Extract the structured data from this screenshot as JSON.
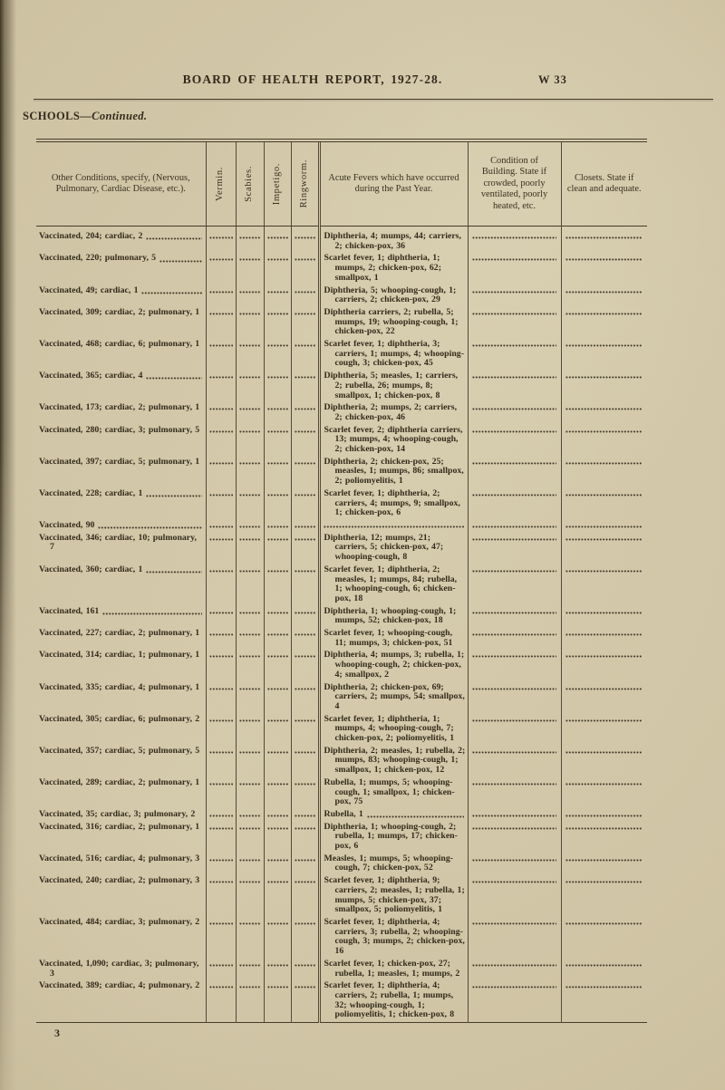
{
  "page_header": {
    "title": "BOARD OF HEALTH REPORT, 1927-28.",
    "page_label": "W 33"
  },
  "section": {
    "title_main": "SCHOOLS",
    "title_continued": "—Continued."
  },
  "table": {
    "headers": {
      "conditions": "Other Conditions, specify, (Nervous, Pulmonary, Cardiac Disease, etc.).",
      "vermin": "Vermin.",
      "scabies": "Scabies.",
      "impetigo": "Impetigo.",
      "ringworm": "Ringworm.",
      "fevers": "Acute Fevers which have occurred during the Past Year.",
      "building": "Condition of Building. State if crowded, poorly ventilated, poorly heated, etc.",
      "closets": "Closets. State if clean and adequate."
    },
    "rows": [
      {
        "conditions": "Vaccinated, 204; cardiac, 2",
        "conditions_leader": true,
        "fevers": "Diphtheria, 4; mumps, 44; carriers, 2; chicken-pox, 36"
      },
      {
        "conditions": "Vaccinated, 220; pulmonary, 5",
        "conditions_leader": true,
        "fevers": "Scarlet fever, 1; diphtheria, 1; mumps, 2; chicken-pox, 62; smallpox, 1"
      },
      {
        "conditions": "Vaccinated, 49; cardiac, 1",
        "conditions_leader": true,
        "fevers": "Diphtheria, 5; whooping-cough, 1; carriers, 2; chicken-pox, 29"
      },
      {
        "conditions": "Vaccinated, 309; cardiac, 2; pulmonary, 1",
        "conditions_leader": false,
        "fevers": "Diphtheria carriers, 2; rubella, 5; mumps, 19; whooping-cough, 1; chicken-pox, 22"
      },
      {
        "conditions": "Vaccinated, 468; cardiac, 6; pulmonary, 1",
        "conditions_leader": false,
        "fevers": "Scarlet fever, 1; diphtheria, 3; carriers, 1; mumps, 4; whooping-cough, 3; chicken-pox, 45"
      },
      {
        "conditions": "Vaccinated, 365; cardiac, 4",
        "conditions_leader": true,
        "fevers": "Diphtheria, 5; measles, 1; carriers, 2; rubella, 26; mumps, 8; smallpox, 1; chicken-pox, 8"
      },
      {
        "conditions": "Vaccinated, 173; cardiac, 2; pulmonary, 1",
        "conditions_leader": false,
        "fevers": "Diphtheria, 2; mumps, 2; carriers, 2; chicken-pox, 46"
      },
      {
        "conditions": "Vaccinated, 280; cardiac, 3; pulmonary, 5",
        "conditions_leader": false,
        "fevers": "Scarlet fever, 2; diphtheria carriers, 13; mumps, 4; whooping-cough, 2; chicken-pox, 14"
      },
      {
        "conditions": "Vaccinated, 397; cardiac, 5; pulmonary, 1",
        "conditions_leader": false,
        "fevers": "Diphtheria, 2; chicken-pox, 25; measles, 1; mumps, 86; smallpox, 2; poliomyelitis, 1"
      },
      {
        "conditions": "Vaccinated, 228; cardiac, 1",
        "conditions_leader": true,
        "fevers": "Scarlet fever, 1; diphtheria, 2; carriers, 4; mumps, 9; smallpox, 1; chicken-pox, 6"
      },
      {
        "conditions": "Vaccinated, 90",
        "conditions_leader": true,
        "fevers": ""
      },
      {
        "conditions": "Vaccinated, 346; cardiac, 10; pulmonary, 7",
        "conditions_leader": false,
        "fevers": "Diphtheria, 12; mumps, 21; carriers, 5; chicken-pox, 47; whooping-cough, 8"
      },
      {
        "conditions": "Vaccinated, 360; cardiac, 1",
        "conditions_leader": true,
        "fevers": "Scarlet fever, 1; diphtheria, 2; measles, 1; mumps, 84; rubella, 1; whooping-cough, 6; chicken-pox, 18"
      },
      {
        "conditions": "Vaccinated, 161",
        "conditions_leader": true,
        "fevers": "Diphtheria, 1; whooping-cough, 1; mumps, 52; chicken-pox, 18"
      },
      {
        "conditions": "Vaccinated, 227; cardiac, 2; pulmonary, 1",
        "conditions_leader": false,
        "fevers": "Scarlet fever, 1; whooping-cough, 11; mumps, 3; chicken-pox, 51"
      },
      {
        "conditions": "Vaccinated, 314; cardiac, 1; pulmonary, 1",
        "conditions_leader": false,
        "fevers": "Diphtheria, 4; mumps, 3; rubella, 1; whooping-cough, 2; chicken-pox, 4; smallpox, 2"
      },
      {
        "conditions": "Vaccinated, 335; cardiac, 4; pulmonary, 1",
        "conditions_leader": false,
        "fevers": "Diphtheria, 2; chicken-pox, 69; carriers, 2; mumps, 54; smallpox, 4"
      },
      {
        "conditions": "Vaccinated, 305; cardiac, 6; pulmonary, 2",
        "conditions_leader": false,
        "fevers": "Scarlet fever, 1; diphtheria, 1; mumps, 4; whooping-cough, 7; chicken-pox, 2; poliomyelitis, 1"
      },
      {
        "conditions": "Vaccinated, 357; cardiac, 5; pulmonary, 5",
        "conditions_leader": false,
        "fevers": "Diphtheria, 2; measles, 1; rubella, 2; mumps, 83; whooping-cough, 1; smallpox, 1; chicken-pox, 12"
      },
      {
        "conditions": "Vaccinated, 289; cardiac, 2; pulmonary, 1",
        "conditions_leader": false,
        "fevers": "Rubella, 1; mumps, 5; whooping-cough, 1; smallpox, 1; chicken-pox, 75"
      },
      {
        "conditions": "Vaccinated, 35; cardiac, 3; pulmonary, 2",
        "conditions_leader": false,
        "fevers": "Rubella, 1",
        "fevers_leader": true
      },
      {
        "conditions": "Vaccinated, 316; cardiac, 2; pulmonary, 1",
        "conditions_leader": false,
        "fevers": "Diphtheria, 1; whooping-cough, 2; rubella, 1; mumps, 17; chicken-pox, 6"
      },
      {
        "conditions": "Vaccinated, 516; cardiac, 4; pulmonary, 3",
        "conditions_leader": false,
        "fevers": "Measles, 1; mumps, 5; whooping-cough, 7; chicken-pox, 52"
      },
      {
        "conditions": "Vaccinated, 240; cardiac, 2; pulmonary, 3",
        "conditions_leader": false,
        "fevers": "Scarlet fever, 1; diphtheria, 9; carriers, 2; measles, 1; rubella, 1; mumps, 5; chicken-pox, 37; smallpox, 5; poliomyelitis, 1"
      },
      {
        "conditions": "Vaccinated, 484; cardiac, 3; pulmonary, 2",
        "conditions_leader": false,
        "fevers": "Scarlet fever, 1; diphtheria, 4; carriers, 3; rubella, 2; whooping-cough, 3; mumps, 2; chicken-pox, 16"
      },
      {
        "conditions": "Vaccinated, 1,090; cardiac, 3; pulmonary, 3",
        "conditions_leader": false,
        "fevers": "Scarlet fever, 1; chicken-pox, 27; rubella, 1; measles, 1; mumps, 2"
      },
      {
        "conditions": "Vaccinated, 389; cardiac, 4; pulmonary, 2",
        "conditions_leader": false,
        "fevers": "Scarlet fever, 1; diphtheria, 4; carriers, 2; rubella, 1; mumps, 32; whooping-cough, 1; poliomyelitis, 1; chicken-pox, 8"
      }
    ]
  },
  "footer": {
    "signature": "3"
  },
  "colors": {
    "paper": "#cfc4a4",
    "ink": "#332a1c",
    "rule": "#453c2b"
  }
}
